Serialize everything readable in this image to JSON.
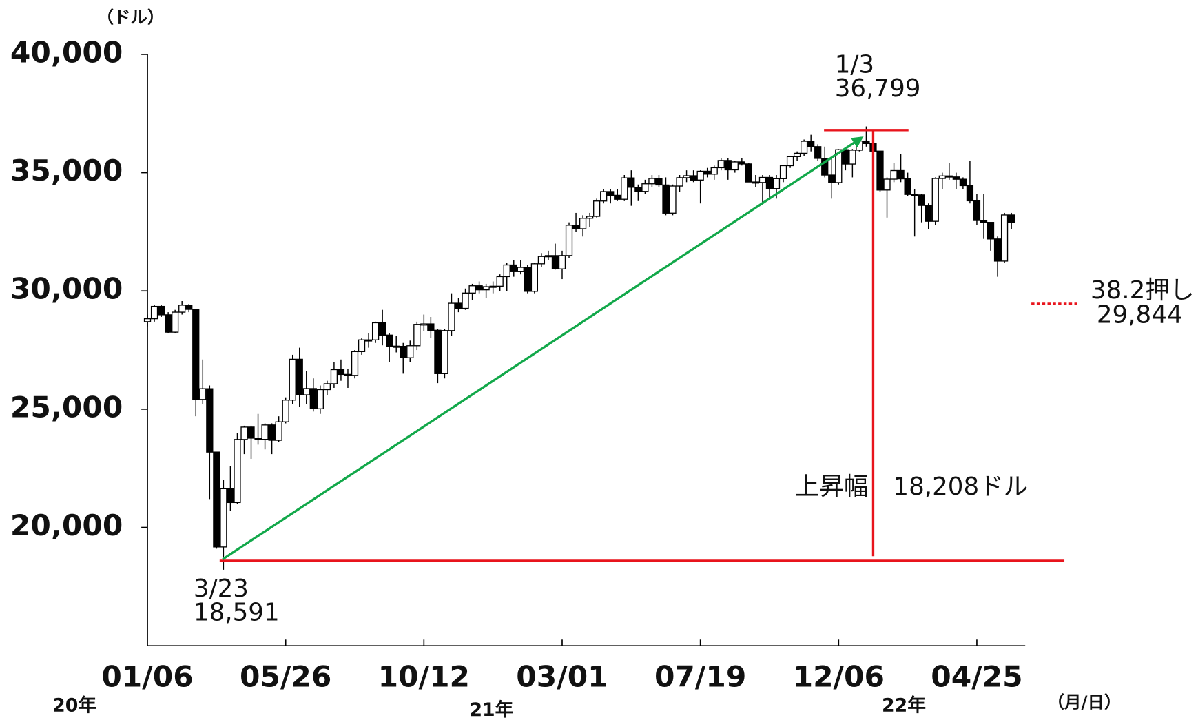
{
  "chart_data": {
    "type": "candlestick",
    "y_unit": "（ドル）",
    "x_unit": "（月/日）",
    "categories": [
      "01/06",
      null,
      null,
      null,
      null,
      null,
      null,
      null,
      null,
      null,
      null,
      null,
      null,
      null,
      null,
      null,
      null,
      null,
      null,
      null,
      "05/26",
      null,
      null,
      null,
      null,
      null,
      null,
      null,
      null,
      null,
      null,
      null,
      null,
      null,
      null,
      null,
      null,
      null,
      null,
      null,
      "10/12",
      null,
      null,
      null,
      null,
      null,
      null,
      null,
      null,
      null,
      null,
      null,
      null,
      null,
      null,
      null,
      null,
      null,
      null,
      null,
      "03/01",
      null,
      null,
      null,
      null,
      null,
      null,
      null,
      null,
      null,
      null,
      null,
      null,
      null,
      null,
      null,
      null,
      null,
      null,
      null,
      "07/19",
      null,
      null,
      null,
      null,
      null,
      null,
      null,
      null,
      null,
      null,
      null,
      null,
      null,
      null,
      null,
      null,
      null,
      null,
      null,
      "12/06",
      null,
      null,
      null,
      null,
      null,
      null,
      null,
      null,
      null,
      null,
      null,
      null,
      null,
      null,
      null,
      null,
      null,
      null,
      null,
      "04/25",
      null,
      null,
      null,
      null,
      null
    ],
    "ohlc": [
      [
        28700,
        29000,
        28500,
        28823
      ],
      [
        28823,
        29400,
        28700,
        29348
      ],
      [
        29348,
        29400,
        28900,
        28990
      ],
      [
        28990,
        29100,
        28200,
        28256
      ],
      [
        28256,
        29200,
        28200,
        29102
      ],
      [
        29102,
        29570,
        29000,
        29398
      ],
      [
        29398,
        29450,
        29100,
        29219
      ],
      [
        29219,
        29220,
        24700,
        25409
      ],
      [
        25409,
        27100,
        25200,
        25865
      ],
      [
        25865,
        26000,
        21200,
        23186
      ],
      [
        23186,
        23200,
        19100,
        19174
      ],
      [
        19174,
        22000,
        18213,
        21636
      ],
      [
        21636,
        22600,
        20700,
        21053
      ],
      [
        21053,
        24000,
        21000,
        23719
      ],
      [
        23719,
        24300,
        23100,
        24242
      ],
      [
        24242,
        24300,
        22900,
        23775
      ],
      [
        23775,
        24800,
        23500,
        23724
      ],
      [
        23724,
        24400,
        23300,
        24331
      ],
      [
        24331,
        24400,
        23100,
        23685
      ],
      [
        23685,
        24700,
        23600,
        24465
      ],
      [
        24465,
        25500,
        24400,
        25383
      ],
      [
        25383,
        27300,
        25200,
        27111
      ],
      [
        27111,
        27600,
        25100,
        25606
      ],
      [
        25606,
        26600,
        25200,
        25871
      ],
      [
        25871,
        26300,
        24900,
        25016
      ],
      [
        25016,
        26000,
        24800,
        25827
      ],
      [
        25827,
        26200,
        25600,
        26075
      ],
      [
        26075,
        27000,
        25900,
        26672
      ],
      [
        26672,
        27100,
        26200,
        26470
      ],
      [
        26470,
        26700,
        25900,
        26428
      ],
      [
        26428,
        27500,
        26300,
        27433
      ],
      [
        27433,
        28000,
        27300,
        27931
      ],
      [
        27931,
        28200,
        27600,
        27930
      ],
      [
        27930,
        28700,
        27800,
        28654
      ],
      [
        28654,
        29200,
        27700,
        28133
      ],
      [
        28133,
        28200,
        27000,
        27666
      ],
      [
        27666,
        28100,
        27400,
        27657
      ],
      [
        27657,
        27800,
        26500,
        27174
      ],
      [
        27174,
        27900,
        27000,
        27683
      ],
      [
        27683,
        28700,
        27500,
        28586
      ],
      [
        28586,
        29000,
        28300,
        28606
      ],
      [
        28606,
        28900,
        28000,
        28336
      ],
      [
        28336,
        28400,
        26100,
        26502
      ],
      [
        26502,
        28400,
        26300,
        28323
      ],
      [
        28323,
        29900,
        28100,
        29480
      ],
      [
        29480,
        29700,
        29100,
        29263
      ],
      [
        29263,
        30100,
        29200,
        29910
      ],
      [
        29910,
        30300,
        29600,
        30218
      ],
      [
        30218,
        30400,
        29900,
        30046
      ],
      [
        30046,
        30300,
        29700,
        30179
      ],
      [
        30179,
        30400,
        29900,
        30200
      ],
      [
        30200,
        30700,
        30000,
        30606
      ],
      [
        30606,
        31200,
        30000,
        31098
      ],
      [
        31098,
        31300,
        30600,
        30814
      ],
      [
        30814,
        31300,
        30700,
        30997
      ],
      [
        30997,
        31100,
        29900,
        29983
      ],
      [
        29983,
        31200,
        29900,
        31148
      ],
      [
        31148,
        31600,
        31000,
        31458
      ],
      [
        31458,
        31700,
        31300,
        31494
      ],
      [
        31494,
        32000,
        30900,
        30932
      ],
      [
        30932,
        31700,
        30500,
        31496
      ],
      [
        31496,
        32900,
        31400,
        32779
      ],
      [
        32779,
        33300,
        32500,
        32628
      ],
      [
        32628,
        33200,
        32300,
        33072
      ],
      [
        33072,
        33300,
        32700,
        33153
      ],
      [
        33153,
        33900,
        33100,
        33801
      ],
      [
        33801,
        34300,
        33700,
        34201
      ],
      [
        34201,
        34300,
        33700,
        34043
      ],
      [
        34043,
        34300,
        33800,
        33875
      ],
      [
        33875,
        34900,
        33800,
        34778
      ],
      [
        34778,
        35100,
        33600,
        34382
      ],
      [
        34382,
        34500,
        33800,
        34208
      ],
      [
        34208,
        34700,
        34100,
        34529
      ],
      [
        34529,
        34900,
        34400,
        34756
      ],
      [
        34756,
        34900,
        34400,
        34480
      ],
      [
        34480,
        34800,
        33200,
        33290
      ],
      [
        33290,
        34500,
        33200,
        34434
      ],
      [
        34434,
        34900,
        34200,
        34786
      ],
      [
        34786,
        35100,
        34600,
        34870
      ],
      [
        34870,
        35100,
        34600,
        34688
      ],
      [
        34688,
        35100,
        33700,
        35061
      ],
      [
        35061,
        35200,
        34800,
        34935
      ],
      [
        34935,
        35300,
        34700,
        35209
      ],
      [
        35209,
        35600,
        35100,
        35515
      ],
      [
        35515,
        35600,
        34700,
        35120
      ],
      [
        35120,
        35500,
        35000,
        35455
      ],
      [
        35455,
        35600,
        35300,
        35369
      ],
      [
        35369,
        35400,
        34600,
        34607
      ],
      [
        34607,
        34900,
        34400,
        34584
      ],
      [
        34584,
        34900,
        33700,
        34798
      ],
      [
        34798,
        34900,
        33900,
        34326
      ],
      [
        34326,
        34900,
        33900,
        34746
      ],
      [
        34746,
        35300,
        34600,
        35295
      ],
      [
        35295,
        35700,
        35200,
        35677
      ],
      [
        35677,
        35900,
        35500,
        35820
      ],
      [
        35820,
        36400,
        35700,
        36328
      ],
      [
        36328,
        36600,
        35900,
        36100
      ],
      [
        36100,
        36200,
        35500,
        35602
      ],
      [
        35602,
        36100,
        34800,
        34899
      ],
      [
        34899,
        35600,
        33900,
        34580
      ],
      [
        34580,
        36000,
        34500,
        35971
      ],
      [
        35971,
        36000,
        35100,
        35365
      ],
      [
        35365,
        36000,
        34800,
        35951
      ],
      [
        35951,
        36500,
        35900,
        36338
      ],
      [
        36338,
        36952,
        36100,
        36231
      ],
      [
        36231,
        36600,
        35700,
        35912
      ],
      [
        35912,
        35900,
        34200,
        34265
      ],
      [
        34265,
        34800,
        33100,
        34725
      ],
      [
        34725,
        35400,
        34600,
        35089
      ],
      [
        35089,
        35800,
        34600,
        34739
      ],
      [
        34739,
        35000,
        34000,
        34079
      ],
      [
        34079,
        34300,
        32300,
        34059
      ],
      [
        34059,
        34100,
        32900,
        33615
      ],
      [
        33615,
        33700,
        32600,
        32944
      ],
      [
        32944,
        34800,
        32800,
        34755
      ],
      [
        34755,
        35000,
        34300,
        34862
      ],
      [
        34862,
        35400,
        34700,
        34818
      ],
      [
        34818,
        35000,
        34300,
        34721
      ],
      [
        34721,
        34800,
        34300,
        34451
      ],
      [
        34451,
        35500,
        33700,
        33811
      ],
      [
        33811,
        34100,
        32800,
        32977
      ],
      [
        32977,
        34100,
        32200,
        32899
      ],
      [
        32899,
        32900,
        31700,
        32196
      ],
      [
        32196,
        32300,
        30600,
        31262
      ],
      [
        31262,
        33300,
        31200,
        33212
      ],
      [
        33212,
        33300,
        32600,
        32899
      ]
    ],
    "ylim": [
      15000,
      40000
    ],
    "yticks": [
      {
        "value": 20000,
        "label": "20,000"
      },
      {
        "value": 25000,
        "label": "25,000"
      },
      {
        "value": 30000,
        "label": "30,000"
      },
      {
        "value": 35000,
        "label": "35,000"
      },
      {
        "value": 40000,
        "label": "40,000"
      }
    ],
    "years": [
      "20年",
      "21年",
      "22年"
    ],
    "low": {
      "date": "3/23",
      "value": 18591,
      "label": "18,591"
    },
    "high": {
      "date": "1/3",
      "value": 36799,
      "label": "36,799"
    },
    "rise_label": "上昇幅　18,208ドル",
    "retracement": {
      "name": "38.2押し",
      "value": 29844,
      "label": "29,844"
    },
    "up_color": "#ffffff",
    "down_color": "#000000",
    "line_color": "#e8141c",
    "arrow_color": "#12a84a"
  }
}
